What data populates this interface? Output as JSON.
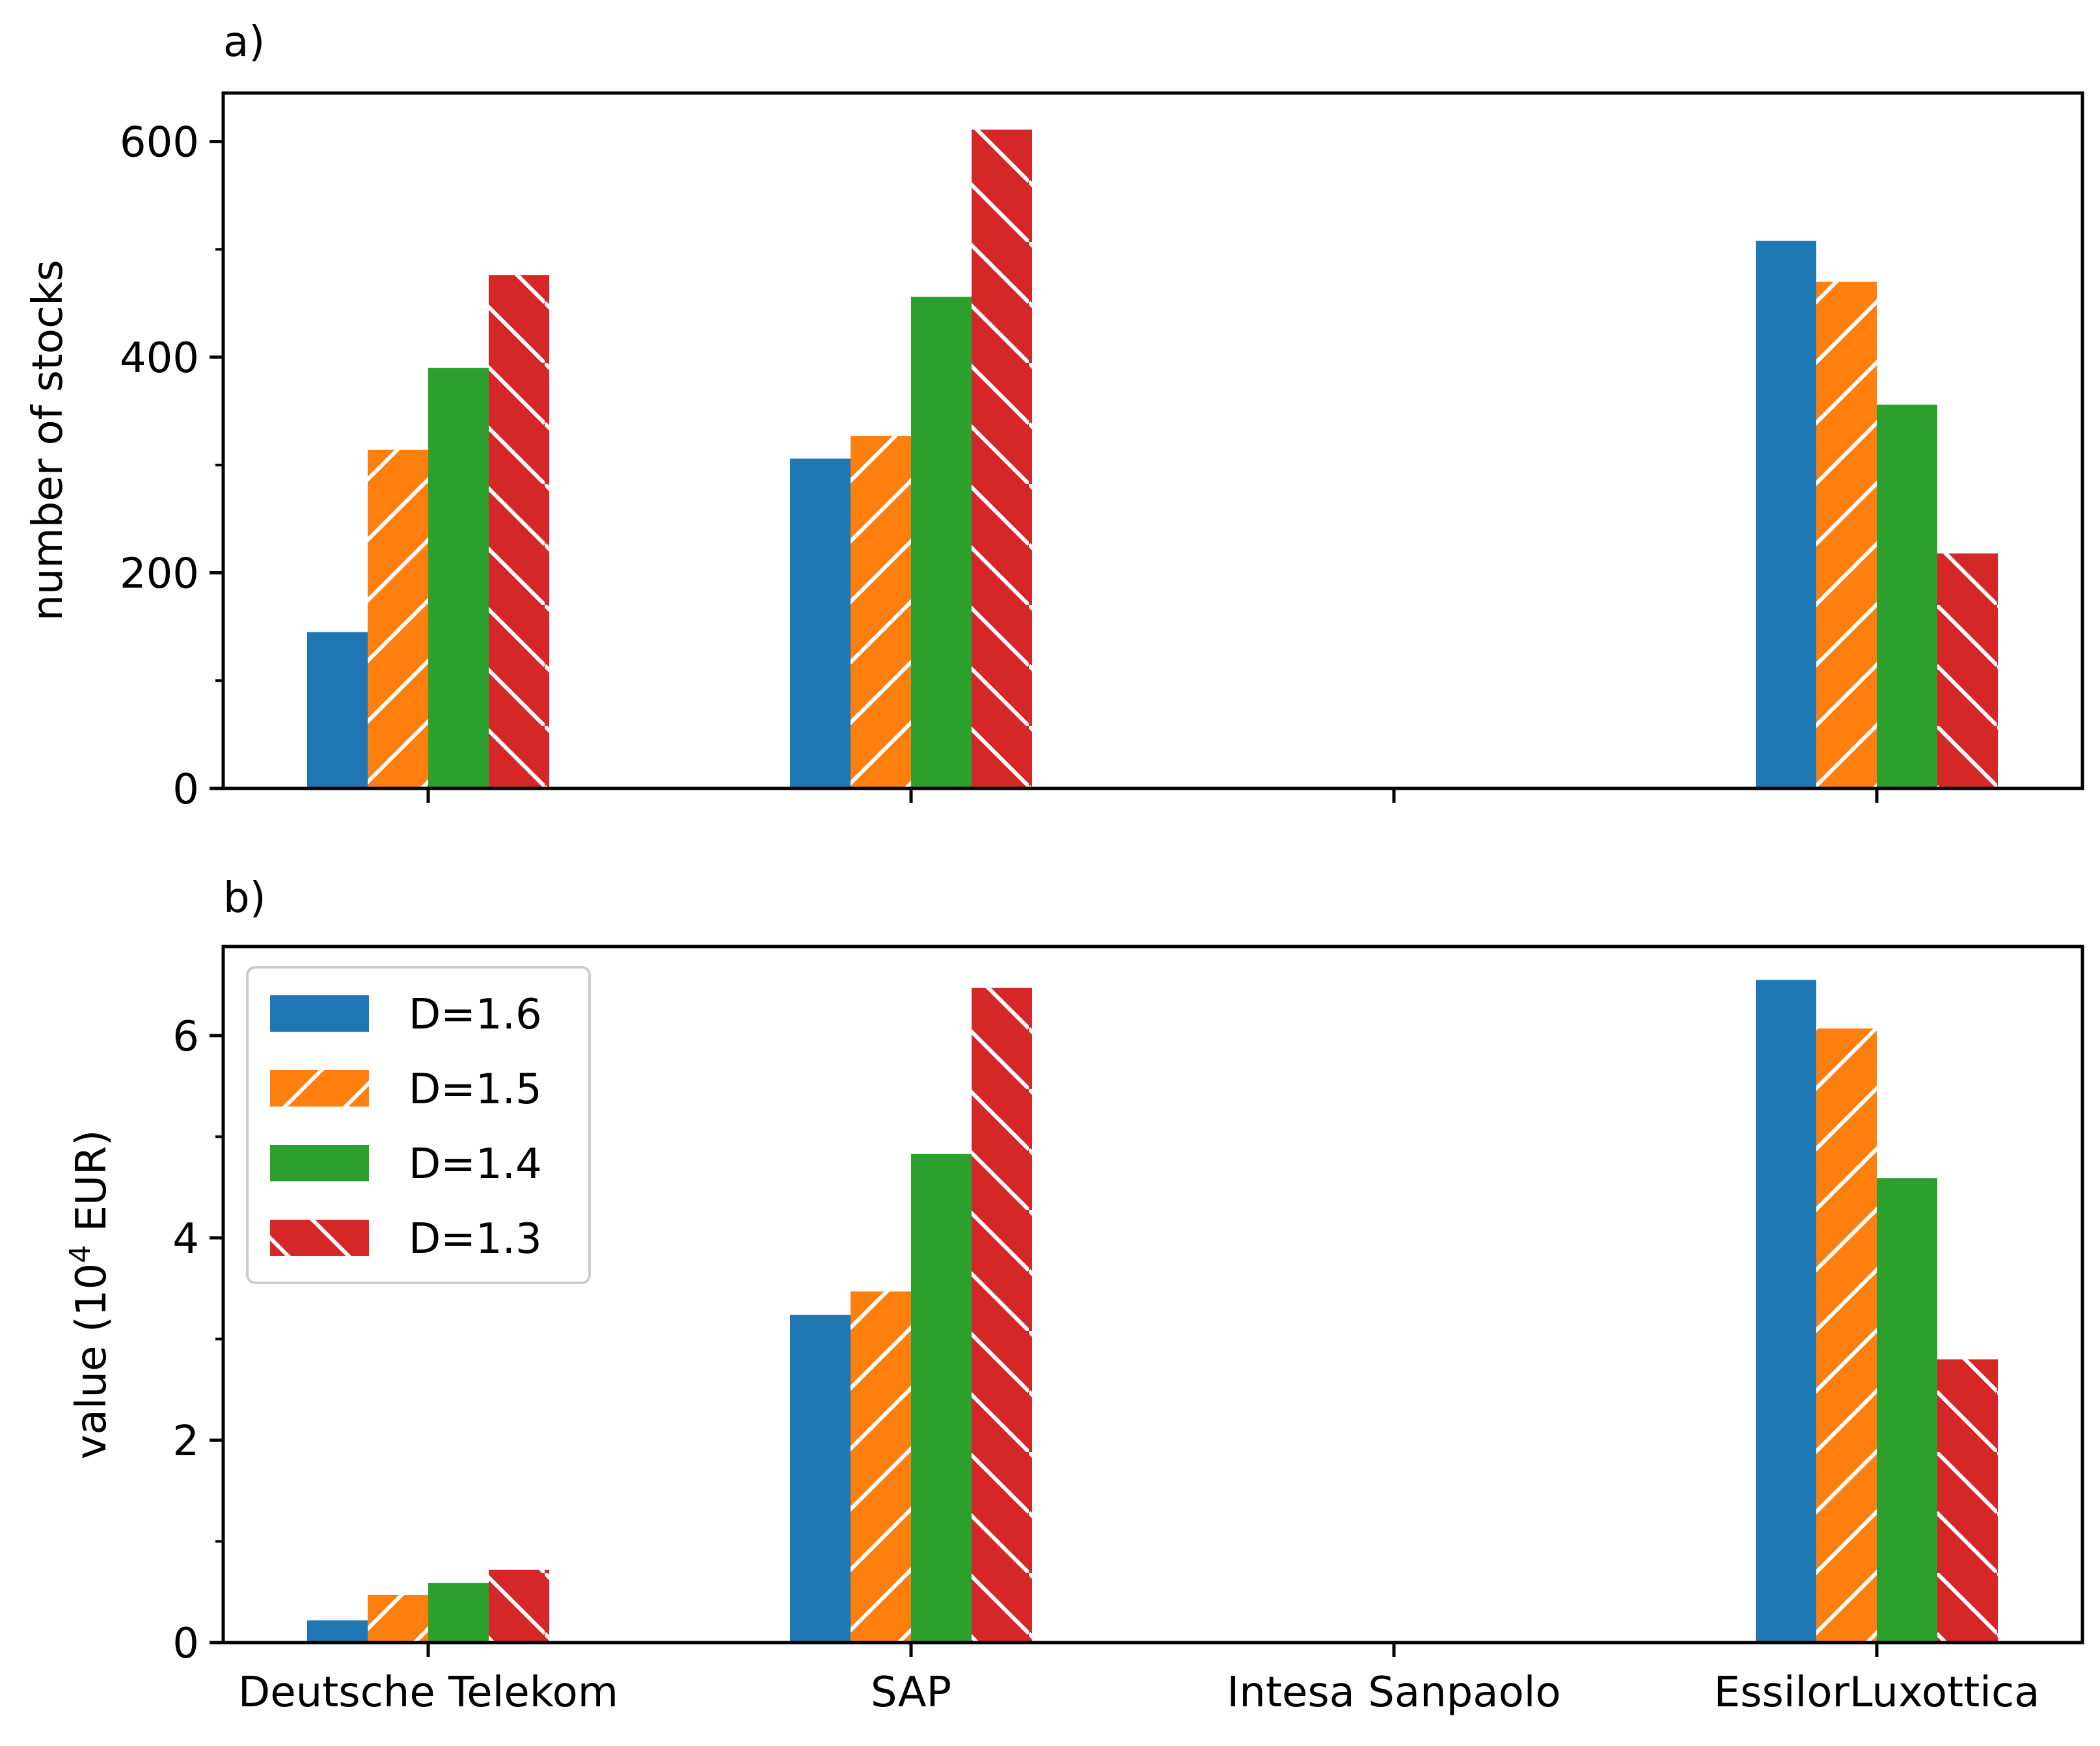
{
  "chart_data": [
    {
      "type": "bar",
      "panel_label": "a)",
      "title": "",
      "xlabel": "",
      "ylabel": "number of stocks",
      "categories": [
        "Deutsche Telekom",
        "SAP",
        "Intesa Sanpaolo",
        "EssilorLuxottica"
      ],
      "show_xticklabels": false,
      "ylim": [
        0,
        645
      ],
      "yticks": [
        0,
        200,
        400,
        600
      ],
      "yticklabels": [
        "0",
        "200",
        "400",
        "600"
      ],
      "yminor": [
        100,
        300,
        500
      ],
      "grid": false,
      "series": [
        {
          "name": "D=1.6",
          "color": "#1f77b4",
          "hatch": "none",
          "values": [
            145,
            306,
            0,
            508
          ]
        },
        {
          "name": "D=1.5",
          "color": "#ff7f0e",
          "hatch": "forward",
          "values": [
            314,
            327,
            0,
            470
          ]
        },
        {
          "name": "D=1.4",
          "color": "#2ca02c",
          "hatch": "none",
          "values": [
            390,
            456,
            0,
            356
          ]
        },
        {
          "name": "D=1.3",
          "color": "#d62728",
          "hatch": "back",
          "values": [
            476,
            611,
            0,
            218
          ]
        }
      ]
    },
    {
      "type": "bar",
      "panel_label": "b)",
      "title": "",
      "xlabel": "",
      "ylabel_main": "value (10",
      "ylabel_sup": "4",
      "ylabel_end": " EUR)",
      "categories": [
        "Deutsche Telekom",
        "SAP",
        "Intesa Sanpaolo",
        "EssilorLuxottica"
      ],
      "show_xticklabels": true,
      "ylim": [
        0,
        6.88
      ],
      "yticks": [
        0,
        2,
        4,
        6
      ],
      "yticklabels": [
        "0",
        "2",
        "4",
        "6"
      ],
      "yminor": [
        1,
        3,
        5
      ],
      "grid": false,
      "legend": "top-left",
      "series": [
        {
          "name": "D=1.6",
          "color": "#1f77b4",
          "hatch": "none",
          "values": [
            0.22,
            3.24,
            0,
            6.55
          ]
        },
        {
          "name": "D=1.5",
          "color": "#ff7f0e",
          "hatch": "forward",
          "values": [
            0.47,
            3.47,
            0,
            6.07
          ]
        },
        {
          "name": "D=1.4",
          "color": "#2ca02c",
          "hatch": "none",
          "values": [
            0.59,
            4.83,
            0,
            4.59
          ]
        },
        {
          "name": "D=1.3",
          "color": "#d62728",
          "hatch": "back",
          "values": [
            0.72,
            6.47,
            0,
            2.8
          ]
        }
      ]
    }
  ]
}
